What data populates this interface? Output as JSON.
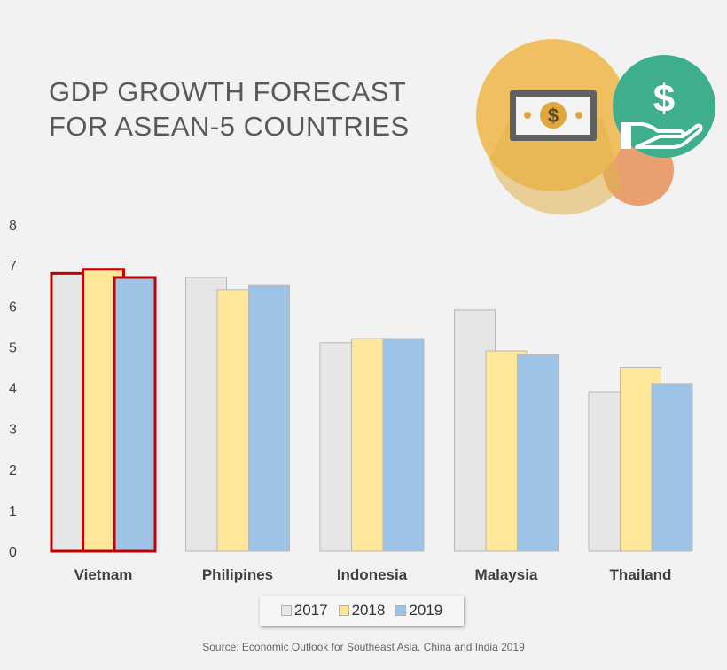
{
  "chart_data": {
    "type": "bar",
    "title": [
      "GDP GROWTH FORECAST",
      "FOR ASEAN-5 COUNTRIES"
    ],
    "categories": [
      "Vietnam",
      "Philipines",
      "Indonesia",
      "Malaysia",
      "Thailand"
    ],
    "series": [
      {
        "name": "2017",
        "values": [
          6.8,
          6.7,
          5.1,
          5.9,
          3.9
        ],
        "color": "#e6e6e6"
      },
      {
        "name": "2018",
        "values": [
          6.9,
          6.4,
          5.2,
          4.9,
          4.5
        ],
        "color": "#ffe699"
      },
      {
        "name": "2019",
        "values": [
          6.7,
          6.5,
          5.2,
          4.8,
          4.1
        ],
        "color": "#9dc3e6"
      }
    ],
    "ylim": [
      0,
      8
    ],
    "yticks": [
      "0",
      "1",
      "2",
      "3",
      "4",
      "5",
      "6",
      "7",
      "8"
    ],
    "highlight_category": "Vietnam",
    "highlight_color": "#c00000",
    "grid": false,
    "legend_position": "bottom",
    "source": "Source: Economic Outlook for Southeast Asia, China and India 2019"
  },
  "illustration": {
    "icons": [
      "banknote-icon",
      "dollar-hand-icon"
    ],
    "dollar_symbol": "$",
    "colors": {
      "gold": "#f0c060",
      "green": "#3fae8c",
      "orange": "#e8a070",
      "note": "#606060"
    }
  }
}
